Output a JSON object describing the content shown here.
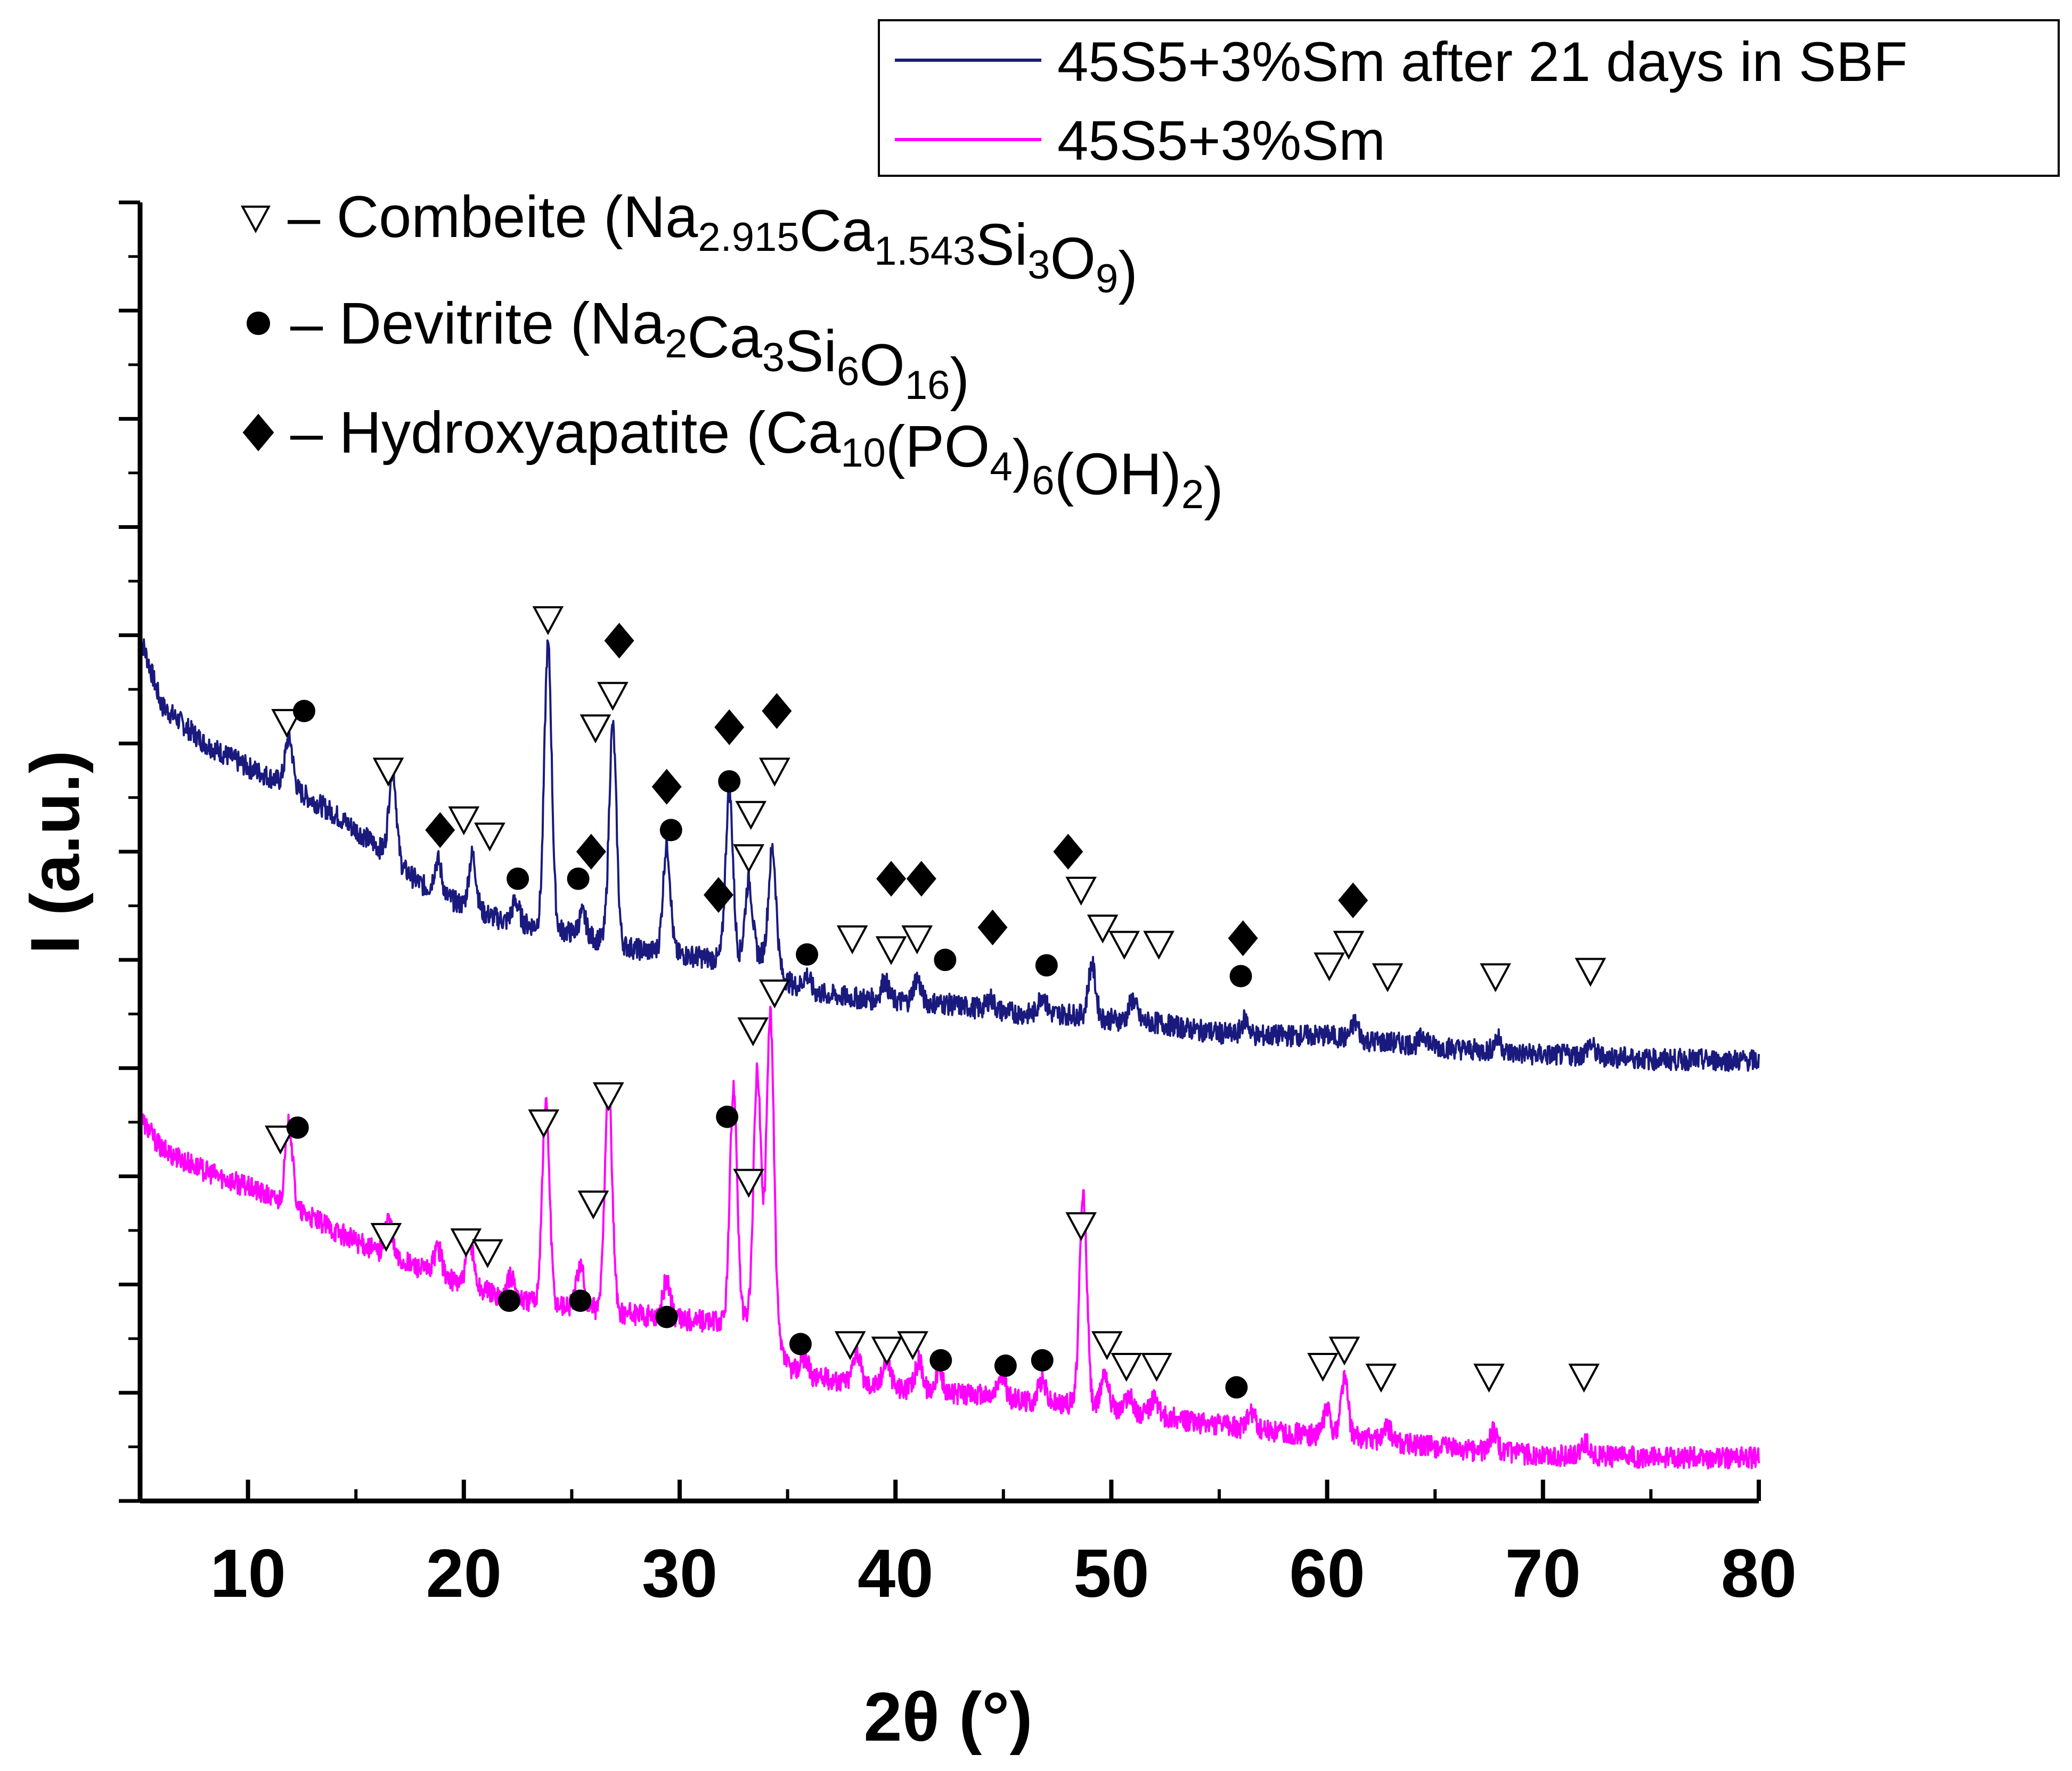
{
  "chart_data": {
    "type": "line",
    "title": "",
    "xlabel": "2θ (°)",
    "ylabel": "I (a.u.)",
    "xlim": [
      5,
      80
    ],
    "ylim": [
      0,
      12
    ],
    "x_ticks": [
      10,
      20,
      30,
      40,
      50,
      60,
      70,
      80
    ],
    "y_tick_labels_shown": false,
    "grid": false,
    "legend_position": "top-right",
    "series": [
      {
        "name": "45S5+3%Sm after 21 days in SBF",
        "color": "#1a1a7e",
        "baseline": [
          [
            5,
            8.0
          ],
          [
            6,
            7.35
          ],
          [
            8,
            7.0
          ],
          [
            10,
            6.78
          ],
          [
            12,
            6.6
          ],
          [
            14,
            6.35
          ],
          [
            16,
            6.05
          ],
          [
            18,
            5.7
          ],
          [
            20,
            5.5
          ],
          [
            22,
            5.35
          ],
          [
            24,
            5.3
          ],
          [
            26,
            5.2
          ],
          [
            28,
            5.1
          ],
          [
            30,
            5.05
          ],
          [
            32,
            5.0
          ],
          [
            34,
            5.05
          ],
          [
            35,
            4.8
          ],
          [
            36,
            4.7
          ],
          [
            38,
            4.65
          ],
          [
            40,
            4.62
          ],
          [
            42,
            4.6
          ],
          [
            44,
            4.55
          ],
          [
            46,
            4.5
          ],
          [
            48,
            4.5
          ],
          [
            50,
            4.45
          ],
          [
            52,
            4.42
          ],
          [
            54,
            4.35
          ],
          [
            56,
            4.3
          ],
          [
            58,
            4.3
          ],
          [
            60,
            4.3
          ],
          [
            62,
            4.25
          ],
          [
            64,
            4.22
          ],
          [
            66,
            4.18
          ],
          [
            68,
            4.15
          ],
          [
            70,
            4.12
          ],
          [
            72,
            4.12
          ],
          [
            75,
            4.08
          ],
          [
            80,
            4.07
          ]
        ],
        "peaks": [
          {
            "x": 11.9,
            "height": 0.45
          },
          {
            "x": 16.7,
            "height": 0.85
          },
          {
            "x": 18.8,
            "height": 0.3
          },
          {
            "x": 20.4,
            "height": 0.5
          },
          {
            "x": 22.4,
            "height": 0.2
          },
          {
            "x": 23.9,
            "height": 2.6
          },
          {
            "x": 25.5,
            "height": 0.2
          },
          {
            "x": 26.9,
            "height": 2.0
          },
          {
            "x": 29.4,
            "height": 1.0
          },
          {
            "x": 32.3,
            "height": 1.55
          },
          {
            "x": 33.2,
            "height": 0.7
          },
          {
            "x": 34.3,
            "height": 1.05
          },
          {
            "x": 35.9,
            "height": 0.15
          },
          {
            "x": 39.5,
            "height": 0.18
          },
          {
            "x": 41.0,
            "height": 0.22
          },
          {
            "x": 44.4,
            "height": 0.1
          },
          {
            "x": 46.8,
            "height": 0.18
          },
          {
            "x": 49.1,
            "height": 0.48
          },
          {
            "x": 51.0,
            "height": 0.2
          },
          {
            "x": 56.2,
            "height": 0.15
          },
          {
            "x": 61.3,
            "height": 0.15
          },
          {
            "x": 64.5,
            "height": 0.1
          },
          {
            "x": 67.9,
            "height": 0.12
          },
          {
            "x": 72.2,
            "height": 0.1
          }
        ]
      },
      {
        "name": "45S5+3%Sm",
        "color": "#ff00ff",
        "baseline": [
          [
            5,
            3.55
          ],
          [
            6,
            3.25
          ],
          [
            8,
            3.05
          ],
          [
            10,
            2.9
          ],
          [
            12,
            2.72
          ],
          [
            14,
            2.5
          ],
          [
            16,
            2.3
          ],
          [
            18,
            2.15
          ],
          [
            20,
            2.0
          ],
          [
            22,
            1.88
          ],
          [
            24,
            1.82
          ],
          [
            26,
            1.78
          ],
          [
            28,
            1.72
          ],
          [
            30,
            1.68
          ],
          [
            32,
            1.65
          ],
          [
            34,
            1.7
          ],
          [
            35,
            1.25
          ],
          [
            36,
            1.15
          ],
          [
            38,
            1.1
          ],
          [
            40,
            1.05
          ],
          [
            42,
            1.0
          ],
          [
            44,
            0.98
          ],
          [
            46,
            0.93
          ],
          [
            48,
            0.9
          ],
          [
            50,
            0.85
          ],
          [
            52,
            0.8
          ],
          [
            54,
            0.72
          ],
          [
            56,
            0.68
          ],
          [
            58,
            0.63
          ],
          [
            60,
            0.6
          ],
          [
            62,
            0.58
          ],
          [
            64,
            0.52
          ],
          [
            66,
            0.48
          ],
          [
            68,
            0.45
          ],
          [
            70,
            0.42
          ],
          [
            72,
            0.42
          ],
          [
            75,
            0.4
          ],
          [
            80,
            0.4
          ]
        ],
        "peaks": [
          {
            "x": 11.9,
            "height": 0.75
          },
          {
            "x": 16.5,
            "height": 0.35
          },
          {
            "x": 18.8,
            "height": 0.25
          },
          {
            "x": 20.3,
            "height": 0.4
          },
          {
            "x": 22.2,
            "height": 0.2
          },
          {
            "x": 23.8,
            "height": 1.85
          },
          {
            "x": 25.4,
            "height": 0.4
          },
          {
            "x": 26.7,
            "height": 2.1
          },
          {
            "x": 29.4,
            "height": 0.35
          },
          {
            "x": 32.5,
            "height": 2.15
          },
          {
            "x": 33.6,
            "height": 2.3
          },
          {
            "x": 34.2,
            "height": 2.9
          },
          {
            "x": 35.8,
            "height": 0.15
          },
          {
            "x": 38.2,
            "height": 0.3
          },
          {
            "x": 39.6,
            "height": 0.25
          },
          {
            "x": 41.1,
            "height": 0.28
          },
          {
            "x": 42.0,
            "height": 0.2
          },
          {
            "x": 44.9,
            "height": 0.2
          },
          {
            "x": 46.8,
            "height": 0.2
          },
          {
            "x": 48.7,
            "height": 1.95
          },
          {
            "x": 49.7,
            "height": 0.35
          },
          {
            "x": 50.8,
            "height": 0.15
          },
          {
            "x": 52.0,
            "height": 0.15
          },
          {
            "x": 56.5,
            "height": 0.15
          },
          {
            "x": 60.0,
            "height": 0.25
          },
          {
            "x": 60.8,
            "height": 0.55
          },
          {
            "x": 62.8,
            "height": 0.12
          },
          {
            "x": 67.7,
            "height": 0.18
          },
          {
            "x": 72.0,
            "height": 0.12
          }
        ]
      }
    ],
    "markers": [
      {
        "series": 0,
        "phase": "combeite",
        "points": [
          [
            11.8,
            7.2
          ],
          [
            16.5,
            6.75
          ],
          [
            20.0,
            6.3
          ],
          [
            21.2,
            6.15
          ],
          [
            23.9,
            8.15
          ],
          [
            26.1,
            7.15
          ],
          [
            26.9,
            7.45
          ],
          [
            33.3,
            6.35
          ],
          [
            33.2,
            5.95
          ],
          [
            34.4,
            6.75
          ],
          [
            38.0,
            5.2
          ],
          [
            39.8,
            5.1
          ],
          [
            41.0,
            5.2
          ],
          [
            48.6,
            5.65
          ],
          [
            49.6,
            5.3
          ],
          [
            50.6,
            5.15
          ],
          [
            52.2,
            5.15
          ],
          [
            60.1,
            4.95
          ],
          [
            61.0,
            5.15
          ],
          [
            62.8,
            4.85
          ],
          [
            67.8,
            4.85
          ],
          [
            72.2,
            4.9
          ]
        ]
      },
      {
        "series": 0,
        "phase": "devitrite",
        "points": [
          [
            12.6,
            7.3
          ],
          [
            22.5,
            5.75
          ],
          [
            25.3,
            5.75
          ],
          [
            29.6,
            6.2
          ],
          [
            32.3,
            6.65
          ],
          [
            35.9,
            5.05
          ],
          [
            42.3,
            5.0
          ],
          [
            47.0,
            4.95
          ],
          [
            56.0,
            4.85
          ]
        ]
      },
      {
        "series": 0,
        "phase": "hydroxyapatite",
        "points": [
          [
            27.2,
            7.95
          ],
          [
            18.9,
            6.2
          ],
          [
            25.9,
            6.0
          ],
          [
            29.4,
            6.6
          ],
          [
            32.3,
            7.15
          ],
          [
            34.5,
            7.3
          ],
          [
            31.8,
            5.6
          ],
          [
            39.8,
            5.75
          ],
          [
            41.2,
            5.75
          ],
          [
            44.5,
            5.3
          ],
          [
            48.0,
            6.0
          ],
          [
            56.1,
            5.2
          ],
          [
            61.2,
            5.55
          ]
        ]
      },
      {
        "series": 1,
        "phase": "combeite",
        "points": [
          [
            11.5,
            3.35
          ],
          [
            16.4,
            2.45
          ],
          [
            20.1,
            2.4
          ],
          [
            21.1,
            2.3
          ],
          [
            23.7,
            3.5
          ],
          [
            26.0,
            2.75
          ],
          [
            26.7,
            3.75
          ],
          [
            33.2,
            2.95
          ],
          [
            33.4,
            4.35
          ],
          [
            34.4,
            4.7
          ],
          [
            37.9,
            1.45
          ],
          [
            39.6,
            1.4
          ],
          [
            40.8,
            1.45
          ],
          [
            48.6,
            2.55
          ],
          [
            49.8,
            1.45
          ],
          [
            50.7,
            1.25
          ],
          [
            52.1,
            1.25
          ],
          [
            59.8,
            1.25
          ],
          [
            60.8,
            1.4
          ],
          [
            62.5,
            1.15
          ],
          [
            67.5,
            1.15
          ],
          [
            71.9,
            1.15
          ]
        ]
      },
      {
        "series": 1,
        "phase": "devitrite",
        "points": [
          [
            12.3,
            3.45
          ],
          [
            22.1,
            1.85
          ],
          [
            25.4,
            1.85
          ],
          [
            29.4,
            1.7
          ],
          [
            32.2,
            3.55
          ],
          [
            35.6,
            1.45
          ],
          [
            42.1,
            1.3
          ],
          [
            45.1,
            1.25
          ],
          [
            46.8,
            1.3
          ],
          [
            55.8,
            1.05
          ]
        ]
      }
    ],
    "phase_legend": [
      {
        "phase": "combeite",
        "symbol": "▽",
        "dash": "–",
        "name": "Combeite (",
        "formula": [
          [
            "Na",
            ""
          ],
          [
            "2.915",
            "sub"
          ],
          [
            "Ca",
            ""
          ],
          [
            "1.543",
            "sub"
          ],
          [
            "Si",
            ""
          ],
          [
            "3",
            "sub"
          ],
          [
            "O",
            ""
          ],
          [
            "9",
            "sub"
          ],
          [
            ")",
            ""
          ]
        ]
      },
      {
        "phase": "devitrite",
        "symbol": "●",
        "dash": "–",
        "name": "Devitrite (",
        "formula": [
          [
            "Na",
            ""
          ],
          [
            "2",
            "sub"
          ],
          [
            "Ca",
            ""
          ],
          [
            "3",
            "sub"
          ],
          [
            "Si",
            ""
          ],
          [
            "6",
            "sub"
          ],
          [
            "O",
            ""
          ],
          [
            "16",
            "sub"
          ],
          [
            ")",
            ""
          ]
        ]
      },
      {
        "phase": "hydroxyapatite",
        "symbol": "◆",
        "dash": "–",
        "name": "Hydroxyapatite (",
        "formula": [
          [
            "Ca",
            ""
          ],
          [
            "10",
            "sub"
          ],
          [
            "(PO",
            ""
          ],
          [
            "4",
            "sub"
          ],
          [
            ")",
            ""
          ],
          [
            "6",
            "sub"
          ],
          [
            "(OH)",
            ""
          ],
          [
            "2",
            "sub"
          ],
          [
            ")",
            ""
          ]
        ]
      }
    ]
  }
}
